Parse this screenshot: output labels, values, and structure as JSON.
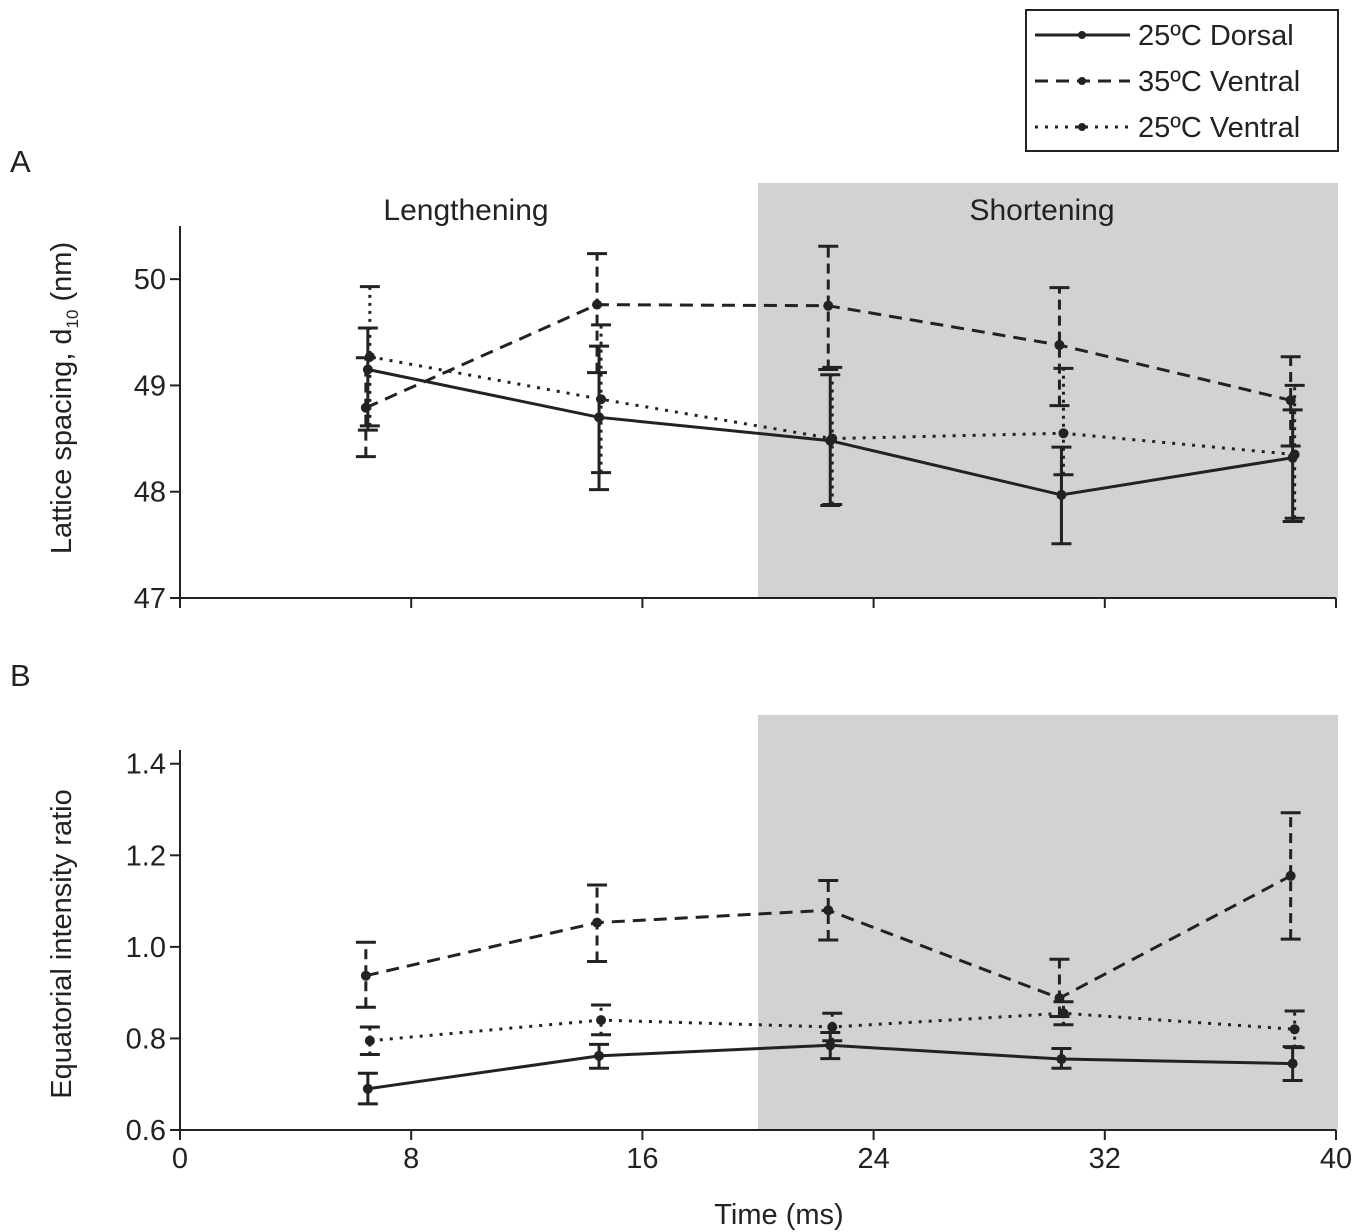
{
  "legend": {
    "entries": [
      {
        "label": "25ºC Dorsal",
        "style": "solid"
      },
      {
        "label": "35ºC Ventral",
        "style": "dashed"
      },
      {
        "label": "25ºC Ventral",
        "style": "dotted"
      }
    ]
  },
  "xaxis": {
    "label": "Time (ms)",
    "ticks": [
      "0",
      "8",
      "16",
      "24",
      "32",
      "40"
    ]
  },
  "colors": {
    "shade": "#d1d2d4",
    "ink": "#222222"
  },
  "chart_data": [
    {
      "type": "line",
      "panel_label": "A",
      "ylabel": "Lattice spacing, d",
      "ylabel_sub": "10",
      "ylabel_unit": " (nm)",
      "xlabel": "",
      "xlim": [
        0,
        40
      ],
      "ylim": [
        47,
        50.5
      ],
      "yticks": [
        "47",
        "48",
        "49",
        "50"
      ],
      "regions": [
        {
          "label": "Lengthening",
          "x": [
            0,
            20
          ],
          "shaded": false
        },
        {
          "label": "Shortening",
          "x": [
            20,
            40
          ],
          "shaded": true
        }
      ],
      "x": [
        6.5,
        14.5,
        22.5,
        30.5,
        38.5
      ],
      "series": [
        {
          "name": "25ºC Dorsal",
          "style": "solid",
          "values": [
            49.15,
            48.7,
            48.48,
            47.97,
            48.32
          ],
          "err_low": [
            48.58,
            48.02,
            47.87,
            47.51,
            47.72
          ],
          "err_high": [
            49.54,
            49.37,
            49.1,
            48.42,
            48.77
          ]
        },
        {
          "name": "35ºC Ventral",
          "style": "dashed",
          "values": [
            48.79,
            49.76,
            49.75,
            49.38,
            48.86
          ],
          "err_low": [
            48.33,
            49.12,
            49.15,
            48.81,
            48.43
          ],
          "err_high": [
            49.26,
            50.24,
            50.31,
            49.92,
            49.27
          ]
        },
        {
          "name": "25ºC Ventral",
          "style": "dotted",
          "values": [
            49.27,
            48.87,
            48.5,
            48.55,
            48.35
          ],
          "err_low": [
            48.62,
            48.18,
            47.88,
            48.16,
            47.75
          ],
          "err_high": [
            49.93,
            49.57,
            49.17,
            49.16,
            49.0
          ]
        }
      ]
    },
    {
      "type": "line",
      "panel_label": "B",
      "ylabel": "Equatorial intensity ratio",
      "xlabel": "Time (ms)",
      "xlim": [
        0,
        40
      ],
      "ylim": [
        0.6,
        1.43
      ],
      "yticks": [
        "0.6",
        "0.8",
        "1.0",
        "1.2",
        "1.4"
      ],
      "regions": [
        {
          "label": "",
          "x": [
            20,
            40
          ],
          "shaded": true
        }
      ],
      "x": [
        6.5,
        14.5,
        22.5,
        30.5,
        38.5
      ],
      "series": [
        {
          "name": "25ºC Dorsal",
          "style": "solid",
          "values": [
            0.69,
            0.762,
            0.785,
            0.755,
            0.745
          ],
          "err_low": [
            0.657,
            0.735,
            0.756,
            0.735,
            0.708
          ],
          "err_high": [
            0.724,
            0.787,
            0.813,
            0.778,
            0.782
          ]
        },
        {
          "name": "35ºC Ventral",
          "style": "dashed",
          "values": [
            0.937,
            1.053,
            1.08,
            0.888,
            1.155
          ],
          "err_low": [
            0.868,
            0.968,
            1.015,
            0.848,
            1.017
          ],
          "err_high": [
            1.01,
            1.135,
            1.145,
            0.973,
            1.293
          ]
        },
        {
          "name": "25ºC Ventral",
          "style": "dotted",
          "values": [
            0.795,
            0.84,
            0.825,
            0.855,
            0.82
          ],
          "err_low": [
            0.765,
            0.808,
            0.795,
            0.83,
            0.78
          ],
          "err_high": [
            0.825,
            0.873,
            0.855,
            0.88,
            0.86
          ]
        }
      ]
    }
  ]
}
